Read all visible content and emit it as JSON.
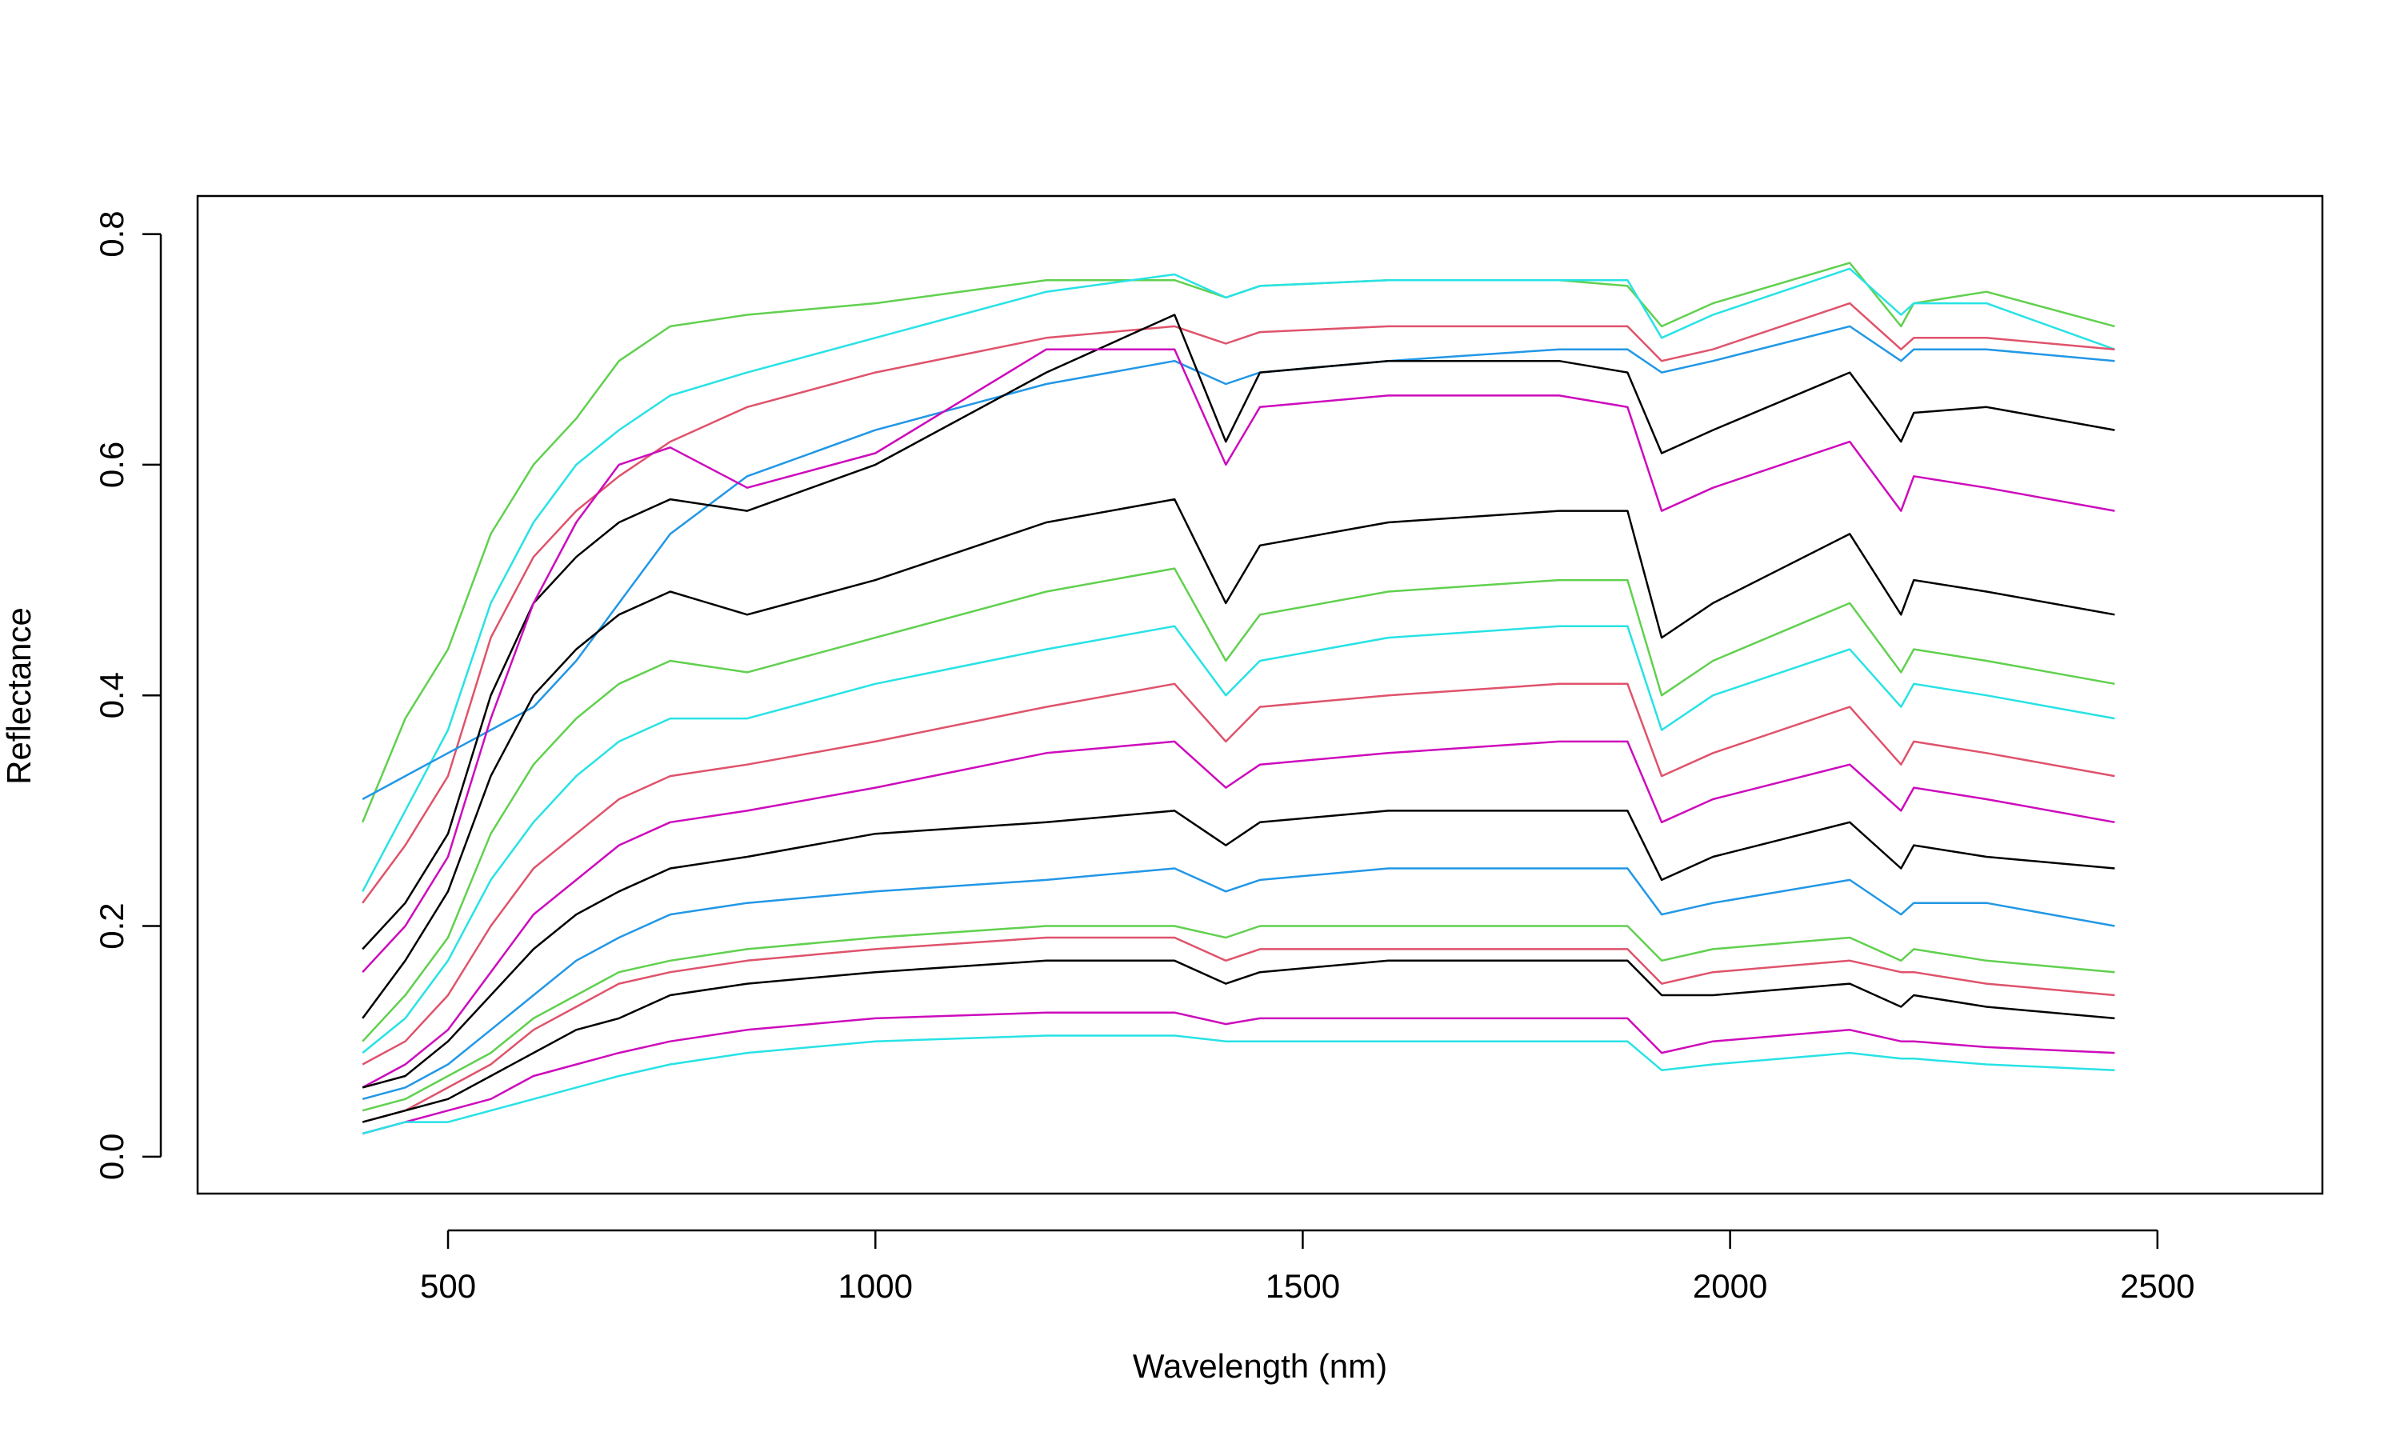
{
  "chart_data": {
    "type": "line",
    "x_label": "Wavelength (nm)",
    "y_label": "Reflectance",
    "x": [
      400,
      450,
      500,
      550,
      600,
      650,
      700,
      760,
      850,
      1000,
      1200,
      1350,
      1410,
      1450,
      1600,
      1800,
      1880,
      1920,
      1980,
      2140,
      2200,
      2215,
      2300,
      2450
    ],
    "xlim": [
      207,
      2693
    ],
    "ylim": [
      -0.032,
      0.833
    ],
    "xticks": [
      500,
      1000,
      1500,
      2000,
      2500
    ],
    "yticks": [
      {
        "value": 0,
        "label": "0.0"
      },
      0.2,
      0.4,
      0.6,
      0.8
    ],
    "series": [
      {
        "color": "#61D04F",
        "values": [
          0.29,
          0.38,
          0.44,
          0.54,
          0.6,
          0.64,
          0.69,
          0.72,
          0.73,
          0.74,
          0.76,
          0.76,
          0.745,
          0.755,
          0.76,
          0.76,
          0.755,
          0.72,
          0.74,
          0.775,
          0.72,
          0.74,
          0.75,
          0.72
        ]
      },
      {
        "color": "#28E2E5",
        "values": [
          0.23,
          0.3,
          0.37,
          0.48,
          0.55,
          0.6,
          0.63,
          0.66,
          0.68,
          0.71,
          0.75,
          0.765,
          0.745,
          0.755,
          0.76,
          0.76,
          0.76,
          0.71,
          0.73,
          0.77,
          0.73,
          0.74,
          0.74,
          0.7
        ]
      },
      {
        "color": "#DF536B",
        "values": [
          0.22,
          0.27,
          0.33,
          0.45,
          0.52,
          0.56,
          0.59,
          0.62,
          0.65,
          0.68,
          0.71,
          0.72,
          0.705,
          0.715,
          0.72,
          0.72,
          0.72,
          0.69,
          0.7,
          0.74,
          0.7,
          0.71,
          0.71,
          0.7
        ]
      },
      {
        "color": "#2297E6",
        "values": [
          0.31,
          0.33,
          0.35,
          0.37,
          0.39,
          0.43,
          0.48,
          0.54,
          0.59,
          0.63,
          0.67,
          0.69,
          0.67,
          0.68,
          0.69,
          0.7,
          0.7,
          0.68,
          0.69,
          0.72,
          0.69,
          0.7,
          0.7,
          0.69
        ]
      },
      {
        "color": "#000000",
        "values": [
          0.18,
          0.22,
          0.28,
          0.4,
          0.48,
          0.52,
          0.55,
          0.57,
          0.56,
          0.6,
          0.68,
          0.73,
          0.62,
          0.68,
          0.69,
          0.69,
          0.68,
          0.61,
          0.63,
          0.68,
          0.62,
          0.645,
          0.65,
          0.63
        ]
      },
      {
        "color": "#CD0BBC",
        "values": [
          0.16,
          0.2,
          0.26,
          0.38,
          0.48,
          0.55,
          0.6,
          0.615,
          0.58,
          0.61,
          0.7,
          0.7,
          0.6,
          0.65,
          0.66,
          0.66,
          0.65,
          0.56,
          0.58,
          0.62,
          0.56,
          0.59,
          0.58,
          0.56
        ]
      },
      {
        "color": "#000000",
        "values": [
          0.12,
          0.17,
          0.23,
          0.33,
          0.4,
          0.44,
          0.47,
          0.49,
          0.47,
          0.5,
          0.55,
          0.57,
          0.48,
          0.53,
          0.55,
          0.56,
          0.56,
          0.45,
          0.48,
          0.54,
          0.47,
          0.5,
          0.49,
          0.47
        ]
      },
      {
        "color": "#61D04F",
        "values": [
          0.1,
          0.14,
          0.19,
          0.28,
          0.34,
          0.38,
          0.41,
          0.43,
          0.42,
          0.45,
          0.49,
          0.51,
          0.43,
          0.47,
          0.49,
          0.5,
          0.5,
          0.4,
          0.43,
          0.48,
          0.42,
          0.44,
          0.43,
          0.41
        ]
      },
      {
        "color": "#28E2E5",
        "values": [
          0.09,
          0.12,
          0.17,
          0.24,
          0.29,
          0.33,
          0.36,
          0.38,
          0.38,
          0.41,
          0.44,
          0.46,
          0.4,
          0.43,
          0.45,
          0.46,
          0.46,
          0.37,
          0.4,
          0.44,
          0.39,
          0.41,
          0.4,
          0.38
        ]
      },
      {
        "color": "#DF536B",
        "values": [
          0.08,
          0.1,
          0.14,
          0.2,
          0.25,
          0.28,
          0.31,
          0.33,
          0.34,
          0.36,
          0.39,
          0.41,
          0.36,
          0.39,
          0.4,
          0.41,
          0.41,
          0.33,
          0.35,
          0.39,
          0.34,
          0.36,
          0.35,
          0.33
        ]
      },
      {
        "color": "#CD0BBC",
        "values": [
          0.06,
          0.08,
          0.11,
          0.16,
          0.21,
          0.24,
          0.27,
          0.29,
          0.3,
          0.32,
          0.35,
          0.36,
          0.32,
          0.34,
          0.35,
          0.36,
          0.36,
          0.29,
          0.31,
          0.34,
          0.3,
          0.32,
          0.31,
          0.29
        ]
      },
      {
        "color": "#000000",
        "values": [
          0.06,
          0.07,
          0.1,
          0.14,
          0.18,
          0.21,
          0.23,
          0.25,
          0.26,
          0.28,
          0.29,
          0.3,
          0.27,
          0.29,
          0.3,
          0.3,
          0.3,
          0.24,
          0.26,
          0.29,
          0.25,
          0.27,
          0.26,
          0.25
        ]
      },
      {
        "color": "#2297E6",
        "values": [
          0.05,
          0.06,
          0.08,
          0.11,
          0.14,
          0.17,
          0.19,
          0.21,
          0.22,
          0.23,
          0.24,
          0.25,
          0.23,
          0.24,
          0.25,
          0.25,
          0.25,
          0.21,
          0.22,
          0.24,
          0.21,
          0.22,
          0.22,
          0.2
        ]
      },
      {
        "color": "#61D04F",
        "values": [
          0.04,
          0.05,
          0.07,
          0.09,
          0.12,
          0.14,
          0.16,
          0.17,
          0.18,
          0.19,
          0.2,
          0.2,
          0.19,
          0.2,
          0.2,
          0.2,
          0.2,
          0.17,
          0.18,
          0.19,
          0.17,
          0.18,
          0.17,
          0.16
        ]
      },
      {
        "color": "#DF536B",
        "values": [
          0.03,
          0.04,
          0.06,
          0.08,
          0.11,
          0.13,
          0.15,
          0.16,
          0.17,
          0.18,
          0.19,
          0.19,
          0.17,
          0.18,
          0.18,
          0.18,
          0.18,
          0.15,
          0.16,
          0.17,
          0.16,
          0.16,
          0.15,
          0.14
        ]
      },
      {
        "color": "#000000",
        "values": [
          0.03,
          0.04,
          0.05,
          0.07,
          0.09,
          0.11,
          0.12,
          0.14,
          0.15,
          0.16,
          0.17,
          0.17,
          0.15,
          0.16,
          0.17,
          0.17,
          0.17,
          0.14,
          0.14,
          0.15,
          0.13,
          0.14,
          0.13,
          0.12
        ]
      },
      {
        "color": "#CD0BBC",
        "values": [
          0.02,
          0.03,
          0.04,
          0.05,
          0.07,
          0.08,
          0.09,
          0.1,
          0.11,
          0.12,
          0.125,
          0.125,
          0.115,
          0.12,
          0.12,
          0.12,
          0.12,
          0.09,
          0.1,
          0.11,
          0.1,
          0.1,
          0.095,
          0.09
        ]
      },
      {
        "color": "#28E2E5",
        "values": [
          0.02,
          0.03,
          0.03,
          0.04,
          0.05,
          0.06,
          0.07,
          0.08,
          0.09,
          0.1,
          0.105,
          0.105,
          0.1,
          0.1,
          0.1,
          0.1,
          0.1,
          0.075,
          0.08,
          0.09,
          0.085,
          0.085,
          0.08,
          0.075
        ]
      }
    ]
  }
}
